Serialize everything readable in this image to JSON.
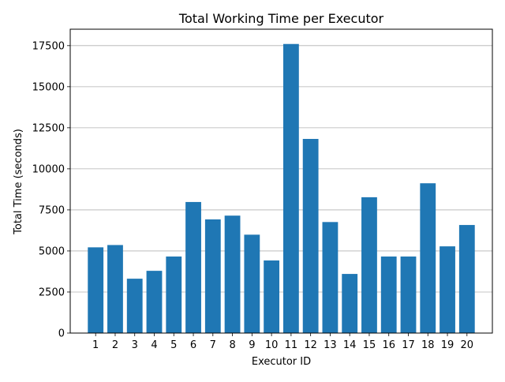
{
  "chart_data": {
    "type": "bar",
    "title": "Total Working Time per Executor",
    "xlabel": "Executor ID",
    "ylabel": "Total Time (seconds)",
    "categories": [
      "1",
      "2",
      "3",
      "4",
      "5",
      "6",
      "7",
      "8",
      "9",
      "10",
      "11",
      "12",
      "13",
      "14",
      "15",
      "16",
      "17",
      "18",
      "19",
      "20"
    ],
    "values": [
      5220,
      5360,
      3310,
      3790,
      4660,
      7980,
      6920,
      7150,
      5990,
      4420,
      17600,
      11820,
      6760,
      3600,
      8270,
      4660,
      4660,
      9120,
      5280,
      6580
    ],
    "ylim": [
      0,
      18500
    ],
    "yticks": [
      0,
      2500,
      5000,
      7500,
      10000,
      12500,
      15000,
      17500
    ],
    "grid": "y",
    "bar_color": "#1f77b4",
    "grid_color": "#b0b0b0"
  }
}
